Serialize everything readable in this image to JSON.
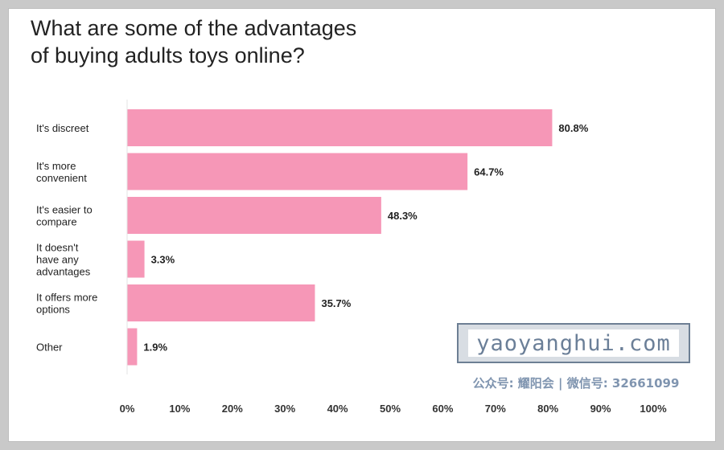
{
  "title": "What are some of the advantages\nof buying adults toys online?",
  "chart_data": {
    "type": "bar",
    "orientation": "horizontal",
    "title": "What are some of the advantages of buying adults toys online?",
    "categories": [
      "It's discreet",
      "It's more convenient",
      "It's easier to compare",
      "It doesn't have any advantages",
      "It offers more options",
      "Other"
    ],
    "category_lines": [
      [
        "It's discreet"
      ],
      [
        "It's more",
        "convenient"
      ],
      [
        "It's easier to",
        "compare"
      ],
      [
        "It doesn't",
        "have any",
        "advantages"
      ],
      [
        "It offers more",
        "options"
      ],
      [
        "Other"
      ]
    ],
    "values": [
      80.8,
      64.7,
      48.3,
      3.3,
      35.7,
      1.9
    ],
    "value_labels": [
      "80.8%",
      "64.7%",
      "48.3%",
      "3.3%",
      "35.7%",
      "1.9%"
    ],
    "xlim": [
      0,
      100
    ],
    "xticks": [
      "0%",
      "10%",
      "20%",
      "30%",
      "40%",
      "50%",
      "60%",
      "70%",
      "80%",
      "90%",
      "100%"
    ],
    "grid": false,
    "bar_color": "#f697b7"
  },
  "watermark": {
    "site": "yaoyanghui.com",
    "subtitle": "公众号: 耀阳会 | 微信号: 32661099"
  }
}
